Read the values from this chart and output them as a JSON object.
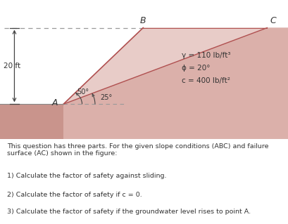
{
  "bg_color": "#ffffff",
  "slope_fill_dark": "#c9948c",
  "slope_fill_mid": "#dbb0aa",
  "slope_fill_light": "#e8ccc8",
  "wedge_fill": "#ddb8b2",
  "dashed_color": "#999999",
  "line_color": "#b05050",
  "arrow_color": "#444444",
  "text_color": "#333333",
  "label_B": "B",
  "label_C": "C",
  "label_A": "A",
  "height_label": "20 ft",
  "angle1_label": "50°",
  "angle2_label": "25°",
  "gamma_label": "γ = 110 lb/ft³",
  "phi_label": "ϕ = 20°",
  "c_label": "c = 400 lb/ft²",
  "question_text": "This question has three parts. For the given slope conditions (ABC) and failure\nsurface (AC) shown in the figure:",
  "q1": "1) Calculate the factor of safety against sliding.",
  "q2": "2) Calculate the factor of safety if c = 0.",
  "q3": "3) Calculate the factor of safety if the groundwater level rises to point A.",
  "fig_width": 4.09,
  "fig_height": 3.19,
  "dpi": 100
}
